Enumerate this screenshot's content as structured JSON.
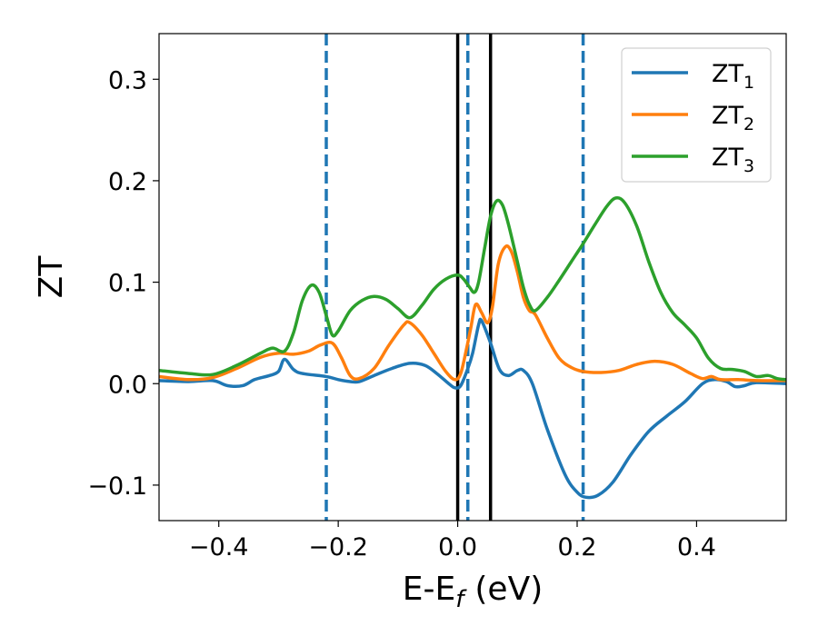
{
  "chart_data": {
    "type": "line",
    "xlabel": "E-E",
    "xlabel_sub": "f",
    "xlabel_unit": "(eV)",
    "ylabel": "ZT",
    "xlim": [
      -0.5,
      0.55
    ],
    "ylim": [
      -0.135,
      0.345
    ],
    "xticks": [
      -0.4,
      -0.2,
      0.0,
      0.2,
      0.4
    ],
    "xtick_labels": [
      "−0.4",
      "−0.2",
      "0.0",
      "0.2",
      "0.4"
    ],
    "yticks": [
      -0.1,
      0.0,
      0.1,
      0.2,
      0.3
    ],
    "ytick_labels": [
      "−0.1",
      "0.0",
      "0.1",
      "0.2",
      "0.3"
    ],
    "grid": false,
    "legend_position": "top-right",
    "vlines": [
      {
        "x": -0.22,
        "style": "dashed",
        "color": "#1f77b4"
      },
      {
        "x": 0.017,
        "style": "dashed",
        "color": "#1f77b4"
      },
      {
        "x": 0.21,
        "style": "dashed",
        "color": "#1f77b4"
      },
      {
        "x": 0.0,
        "style": "solid",
        "color": "#000000"
      },
      {
        "x": 0.055,
        "style": "solid",
        "color": "#000000"
      }
    ],
    "series": [
      {
        "name": "ZT",
        "name_sub": "1",
        "color": "#1f77b4",
        "points": [
          [
            -0.5,
            0.003
          ],
          [
            -0.45,
            0.002
          ],
          [
            -0.41,
            0.003
          ],
          [
            -0.385,
            -0.002
          ],
          [
            -0.36,
            -0.002
          ],
          [
            -0.34,
            0.004
          ],
          [
            -0.315,
            0.008
          ],
          [
            -0.3,
            0.012
          ],
          [
            -0.29,
            0.024
          ],
          [
            -0.275,
            0.014
          ],
          [
            -0.26,
            0.01
          ],
          [
            -0.22,
            0.007
          ],
          [
            -0.2,
            0.004
          ],
          [
            -0.18,
            0.002
          ],
          [
            -0.165,
            0.002
          ],
          [
            -0.14,
            0.008
          ],
          [
            -0.11,
            0.015
          ],
          [
            -0.08,
            0.02
          ],
          [
            -0.055,
            0.018
          ],
          [
            -0.035,
            0.01
          ],
          [
            -0.015,
            0.0
          ],
          [
            -0.005,
            -0.004
          ],
          [
            0.005,
            -0.002
          ],
          [
            0.017,
            0.015
          ],
          [
            0.025,
            0.03
          ],
          [
            0.035,
            0.058
          ],
          [
            0.04,
            0.062
          ],
          [
            0.055,
            0.04
          ],
          [
            0.07,
            0.014
          ],
          [
            0.085,
            0.008
          ],
          [
            0.1,
            0.013
          ],
          [
            0.11,
            0.013
          ],
          [
            0.125,
            0.0
          ],
          [
            0.15,
            -0.045
          ],
          [
            0.18,
            -0.09
          ],
          [
            0.2,
            -0.107
          ],
          [
            0.215,
            -0.112
          ],
          [
            0.235,
            -0.11
          ],
          [
            0.26,
            -0.097
          ],
          [
            0.29,
            -0.07
          ],
          [
            0.32,
            -0.047
          ],
          [
            0.35,
            -0.032
          ],
          [
            0.38,
            -0.018
          ],
          [
            0.41,
            0.0
          ],
          [
            0.43,
            0.004
          ],
          [
            0.45,
            0.002
          ],
          [
            0.465,
            -0.003
          ],
          [
            0.48,
            -0.002
          ],
          [
            0.5,
            0.001
          ],
          [
            0.55,
            0.0
          ]
        ]
      },
      {
        "name": "ZT",
        "name_sub": "2",
        "color": "#ff7f0e",
        "points": [
          [
            -0.5,
            0.007
          ],
          [
            -0.45,
            0.004
          ],
          [
            -0.41,
            0.006
          ],
          [
            -0.37,
            0.015
          ],
          [
            -0.33,
            0.026
          ],
          [
            -0.3,
            0.03
          ],
          [
            -0.275,
            0.029
          ],
          [
            -0.25,
            0.032
          ],
          [
            -0.23,
            0.038
          ],
          [
            -0.21,
            0.04
          ],
          [
            -0.195,
            0.026
          ],
          [
            -0.18,
            0.008
          ],
          [
            -0.165,
            0.005
          ],
          [
            -0.14,
            0.015
          ],
          [
            -0.115,
            0.038
          ],
          [
            -0.09,
            0.058
          ],
          [
            -0.08,
            0.06
          ],
          [
            -0.06,
            0.048
          ],
          [
            -0.04,
            0.03
          ],
          [
            -0.02,
            0.012
          ],
          [
            -0.005,
            0.004
          ],
          [
            0.005,
            0.01
          ],
          [
            0.015,
            0.035
          ],
          [
            0.022,
            0.055
          ],
          [
            0.03,
            0.078
          ],
          [
            0.04,
            0.07
          ],
          [
            0.05,
            0.06
          ],
          [
            0.058,
            0.075
          ],
          [
            0.068,
            0.118
          ],
          [
            0.08,
            0.135
          ],
          [
            0.09,
            0.13
          ],
          [
            0.1,
            0.11
          ],
          [
            0.11,
            0.085
          ],
          [
            0.12,
            0.072
          ],
          [
            0.13,
            0.068
          ],
          [
            0.15,
            0.045
          ],
          [
            0.17,
            0.025
          ],
          [
            0.19,
            0.016
          ],
          [
            0.21,
            0.012
          ],
          [
            0.24,
            0.011
          ],
          [
            0.27,
            0.013
          ],
          [
            0.3,
            0.019
          ],
          [
            0.33,
            0.022
          ],
          [
            0.36,
            0.019
          ],
          [
            0.39,
            0.01
          ],
          [
            0.41,
            0.005
          ],
          [
            0.425,
            0.007
          ],
          [
            0.44,
            0.004
          ],
          [
            0.47,
            0.004
          ],
          [
            0.5,
            0.003
          ],
          [
            0.55,
            0.003
          ]
        ]
      },
      {
        "name": "ZT",
        "name_sub": "3",
        "color": "#2ca02c",
        "points": [
          [
            -0.5,
            0.013
          ],
          [
            -0.45,
            0.01
          ],
          [
            -0.41,
            0.009
          ],
          [
            -0.37,
            0.018
          ],
          [
            -0.33,
            0.03
          ],
          [
            -0.31,
            0.035
          ],
          [
            -0.29,
            0.032
          ],
          [
            -0.275,
            0.05
          ],
          [
            -0.26,
            0.082
          ],
          [
            -0.245,
            0.097
          ],
          [
            -0.232,
            0.09
          ],
          [
            -0.22,
            0.067
          ],
          [
            -0.21,
            0.048
          ],
          [
            -0.2,
            0.052
          ],
          [
            -0.18,
            0.072
          ],
          [
            -0.16,
            0.082
          ],
          [
            -0.14,
            0.086
          ],
          [
            -0.12,
            0.083
          ],
          [
            -0.1,
            0.074
          ],
          [
            -0.08,
            0.065
          ],
          [
            -0.06,
            0.077
          ],
          [
            -0.04,
            0.093
          ],
          [
            -0.02,
            0.103
          ],
          [
            0.0,
            0.107
          ],
          [
            0.01,
            0.103
          ],
          [
            0.02,
            0.095
          ],
          [
            0.028,
            0.09
          ],
          [
            0.035,
            0.1
          ],
          [
            0.045,
            0.133
          ],
          [
            0.055,
            0.165
          ],
          [
            0.065,
            0.18
          ],
          [
            0.075,
            0.176
          ],
          [
            0.085,
            0.157
          ],
          [
            0.1,
            0.12
          ],
          [
            0.11,
            0.095
          ],
          [
            0.12,
            0.078
          ],
          [
            0.13,
            0.072
          ],
          [
            0.15,
            0.085
          ],
          [
            0.17,
            0.102
          ],
          [
            0.19,
            0.12
          ],
          [
            0.21,
            0.138
          ],
          [
            0.23,
            0.157
          ],
          [
            0.25,
            0.175
          ],
          [
            0.265,
            0.183
          ],
          [
            0.28,
            0.178
          ],
          [
            0.3,
            0.155
          ],
          [
            0.32,
            0.12
          ],
          [
            0.34,
            0.09
          ],
          [
            0.36,
            0.07
          ],
          [
            0.38,
            0.058
          ],
          [
            0.4,
            0.045
          ],
          [
            0.42,
            0.025
          ],
          [
            0.44,
            0.015
          ],
          [
            0.46,
            0.014
          ],
          [
            0.48,
            0.012
          ],
          [
            0.5,
            0.007
          ],
          [
            0.52,
            0.008
          ],
          [
            0.535,
            0.005
          ],
          [
            0.55,
            0.004
          ]
        ]
      }
    ]
  }
}
